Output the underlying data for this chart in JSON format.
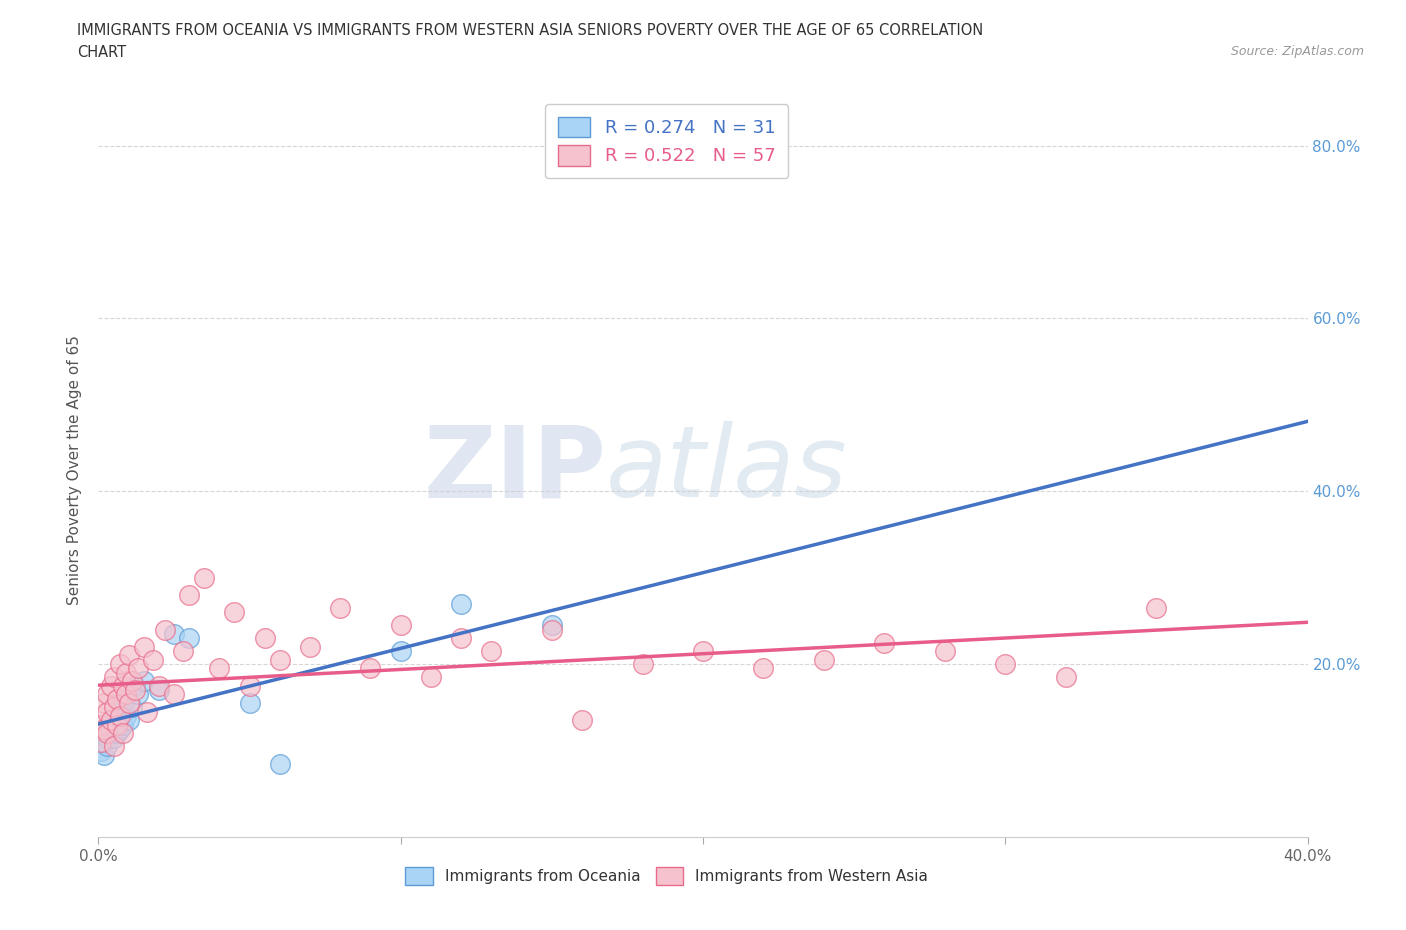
{
  "title_line1": "IMMIGRANTS FROM OCEANIA VS IMMIGRANTS FROM WESTERN ASIA SENIORS POVERTY OVER THE AGE OF 65 CORRELATION",
  "title_line2": "CHART",
  "source_text": "Source: ZipAtlas.com",
  "ylabel": "Seniors Poverty Over the Age of 65",
  "xlim": [
    0.0,
    0.4
  ],
  "ylim": [
    0.0,
    0.85
  ],
  "xticks": [
    0.0,
    0.1,
    0.2,
    0.3,
    0.4
  ],
  "xticklabels": [
    "0.0%",
    "",
    "",
    "",
    ""
  ],
  "yticks": [
    0.2,
    0.4,
    0.6,
    0.8
  ],
  "yticklabels": [
    "20.0%",
    "40.0%",
    "60.0%",
    "80.0%"
  ],
  "watermark_zip": "ZIP",
  "watermark_atlas": "atlas",
  "legend_text1": "R = 0.274   N = 31",
  "legend_text2": "R = 0.522   N = 57",
  "legend_label1": "Immigrants from Oceania",
  "legend_label2": "Immigrants from Western Asia",
  "color_oceania_fill": "#aad4f5",
  "color_oceania_edge": "#5b9bd5",
  "color_western_fill": "#f5c2ce",
  "color_western_edge": "#e86c8a",
  "color_line_oceania": "#4472c4",
  "color_line_western": "#e85c8a",
  "oceania_x": [
    0.001,
    0.002,
    0.002,
    0.003,
    0.003,
    0.004,
    0.004,
    0.005,
    0.005,
    0.005,
    0.006,
    0.006,
    0.007,
    0.007,
    0.008,
    0.008,
    0.009,
    0.009,
    0.01,
    0.011,
    0.012,
    0.013,
    0.015,
    0.02,
    0.025,
    0.03,
    0.05,
    0.06,
    0.1,
    0.12,
    0.15
  ],
  "oceania_y": [
    0.1,
    0.095,
    0.11,
    0.115,
    0.105,
    0.12,
    0.125,
    0.13,
    0.115,
    0.14,
    0.12,
    0.135,
    0.125,
    0.145,
    0.13,
    0.155,
    0.14,
    0.16,
    0.135,
    0.15,
    0.175,
    0.165,
    0.18,
    0.17,
    0.235,
    0.23,
    0.155,
    0.085,
    0.215,
    0.27,
    0.245
  ],
  "western_asia_x": [
    0.001,
    0.001,
    0.002,
    0.002,
    0.003,
    0.003,
    0.003,
    0.004,
    0.004,
    0.005,
    0.005,
    0.005,
    0.006,
    0.006,
    0.007,
    0.007,
    0.008,
    0.008,
    0.009,
    0.009,
    0.01,
    0.01,
    0.011,
    0.012,
    0.013,
    0.015,
    0.016,
    0.018,
    0.02,
    0.022,
    0.025,
    0.028,
    0.03,
    0.035,
    0.04,
    0.045,
    0.05,
    0.055,
    0.06,
    0.07,
    0.08,
    0.09,
    0.1,
    0.11,
    0.12,
    0.13,
    0.15,
    0.16,
    0.18,
    0.2,
    0.22,
    0.24,
    0.26,
    0.28,
    0.3,
    0.32,
    0.35
  ],
  "western_asia_y": [
    0.11,
    0.13,
    0.155,
    0.125,
    0.145,
    0.165,
    0.12,
    0.135,
    0.175,
    0.105,
    0.15,
    0.185,
    0.13,
    0.16,
    0.14,
    0.2,
    0.175,
    0.12,
    0.165,
    0.19,
    0.155,
    0.21,
    0.18,
    0.17,
    0.195,
    0.22,
    0.145,
    0.205,
    0.175,
    0.24,
    0.165,
    0.215,
    0.28,
    0.3,
    0.195,
    0.26,
    0.175,
    0.23,
    0.205,
    0.22,
    0.265,
    0.195,
    0.245,
    0.185,
    0.23,
    0.215,
    0.24,
    0.135,
    0.2,
    0.215,
    0.195,
    0.205,
    0.225,
    0.215,
    0.2,
    0.185,
    0.265
  ]
}
